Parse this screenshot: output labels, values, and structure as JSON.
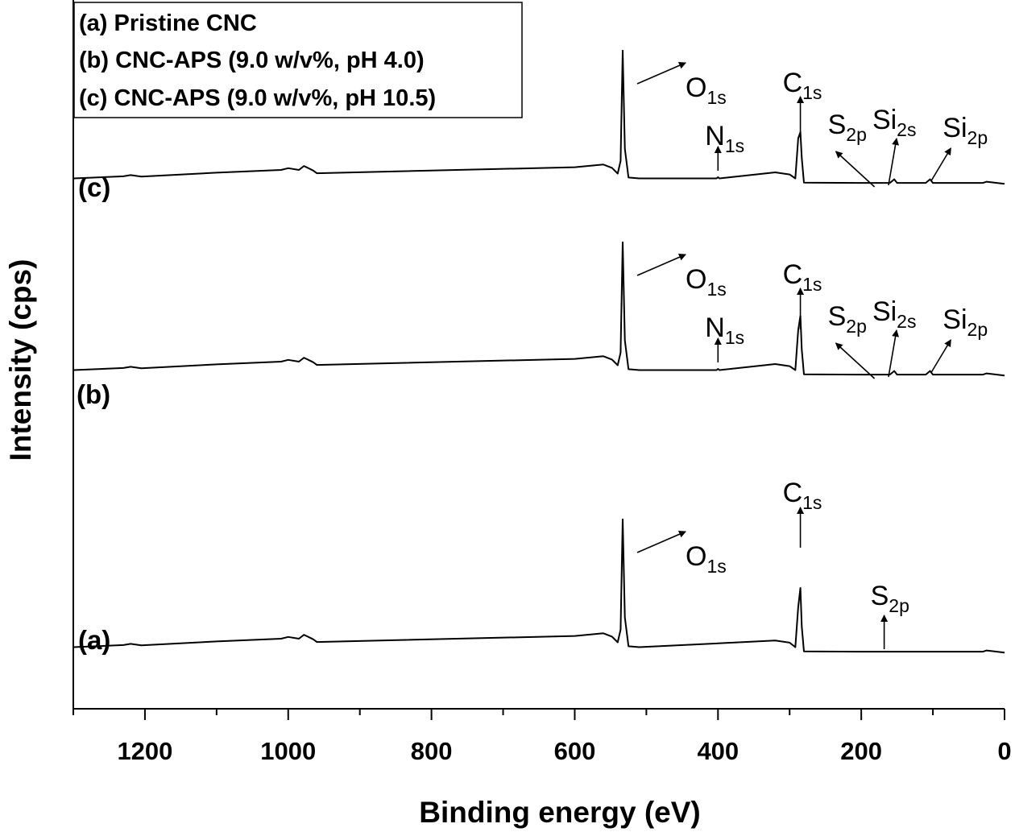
{
  "chart_data": {
    "type": "line",
    "xlabel": "Binding energy (eV)",
    "ylabel": "Intensity (cps)",
    "xlim": [
      1300,
      0
    ],
    "x_reversed": true,
    "x_ticks": [
      1200,
      1000,
      800,
      600,
      400,
      200,
      0
    ],
    "y_ticks_shown": false,
    "grid": false,
    "legend": {
      "placement": "top-left",
      "entries": [
        "(a) Pristine CNC",
        "(b) CNC-APS (9.0 w/v%, pH 4.0)",
        "(c) CNC-APS (9.0 w/v%, pH 10.5)"
      ]
    },
    "series": [
      {
        "name": "(a)",
        "label": "(a)",
        "x": [
          1300,
          1230,
          1220,
          1205,
          1100,
          1010,
          1000,
          985,
          978,
          965,
          960,
          600,
          560,
          548,
          540,
          536,
          533,
          530,
          525,
          510,
          320,
          300,
          292,
          288,
          285,
          283,
          280,
          200,
          170,
          30,
          25,
          0
        ],
        "y": [
          12,
          19,
          23,
          18,
          31,
          40,
          46,
          40,
          53,
          38,
          29,
          49,
          58,
          47,
          28,
          70,
          435,
          110,
          15,
          12,
          34,
          27,
          12,
          145,
          208,
          80,
          -2,
          -3,
          -3,
          -3,
          1,
          -6
        ],
        "peaks": [
          {
            "label": "O",
            "sub": "1s",
            "x": 533
          },
          {
            "label": "C",
            "sub": "1s",
            "x": 285
          },
          {
            "label": "S",
            "sub": "2p",
            "x": 168
          }
        ]
      },
      {
        "name": "(b)",
        "label": "(b)",
        "x": [
          1300,
          1230,
          1220,
          1205,
          1100,
          1010,
          1000,
          985,
          978,
          965,
          960,
          600,
          560,
          548,
          540,
          536,
          533,
          530,
          525,
          510,
          402,
          400,
          398,
          320,
          300,
          292,
          288,
          285,
          283,
          280,
          200,
          160,
          154,
          150,
          110,
          104,
          100,
          30,
          25,
          0
        ],
        "y": [
          12,
          19,
          23,
          18,
          31,
          40,
          46,
          40,
          53,
          38,
          29,
          49,
          58,
          47,
          28,
          70,
          435,
          110,
          15,
          12,
          12,
          16,
          12,
          32,
          25,
          12,
          145,
          192,
          80,
          -2,
          -3,
          -3,
          9,
          -3,
          -3,
          9,
          -3,
          -3,
          1,
          -6
        ],
        "peaks": [
          {
            "label": "O",
            "sub": "1s",
            "x": 533
          },
          {
            "label": "N",
            "sub": "1s",
            "x": 400
          },
          {
            "label": "C",
            "sub": "1s",
            "x": 285
          },
          {
            "label": "S",
            "sub": "2p",
            "x": 168
          },
          {
            "label": "Si",
            "sub": "2s",
            "x": 153
          },
          {
            "label": "Si",
            "sub": "2p",
            "x": 102
          }
        ]
      },
      {
        "name": "(c)",
        "label": "(c)",
        "x": [
          1300,
          1230,
          1220,
          1205,
          1100,
          1010,
          1000,
          985,
          978,
          965,
          960,
          600,
          560,
          548,
          540,
          536,
          533,
          530,
          525,
          510,
          402,
          400,
          398,
          320,
          300,
          292,
          288,
          285,
          283,
          280,
          200,
          160,
          154,
          150,
          110,
          104,
          100,
          30,
          25,
          0
        ],
        "y": [
          12,
          19,
          23,
          18,
          31,
          40,
          46,
          40,
          53,
          38,
          29,
          49,
          58,
          47,
          28,
          70,
          435,
          110,
          15,
          12,
          12,
          16,
          12,
          32,
          25,
          12,
          145,
          165,
          80,
          -2,
          -3,
          -3,
          9,
          -3,
          -3,
          9,
          -3,
          -3,
          1,
          -6
        ],
        "peaks": [
          {
            "label": "O",
            "sub": "1s",
            "x": 533
          },
          {
            "label": "N",
            "sub": "1s",
            "x": 400
          },
          {
            "label": "C",
            "sub": "1s",
            "x": 285
          },
          {
            "label": "S",
            "sub": "2p",
            "x": 168
          },
          {
            "label": "Si",
            "sub": "2s",
            "x": 153
          },
          {
            "label": "Si",
            "sub": "2p",
            "x": 102
          }
        ]
      }
    ]
  }
}
